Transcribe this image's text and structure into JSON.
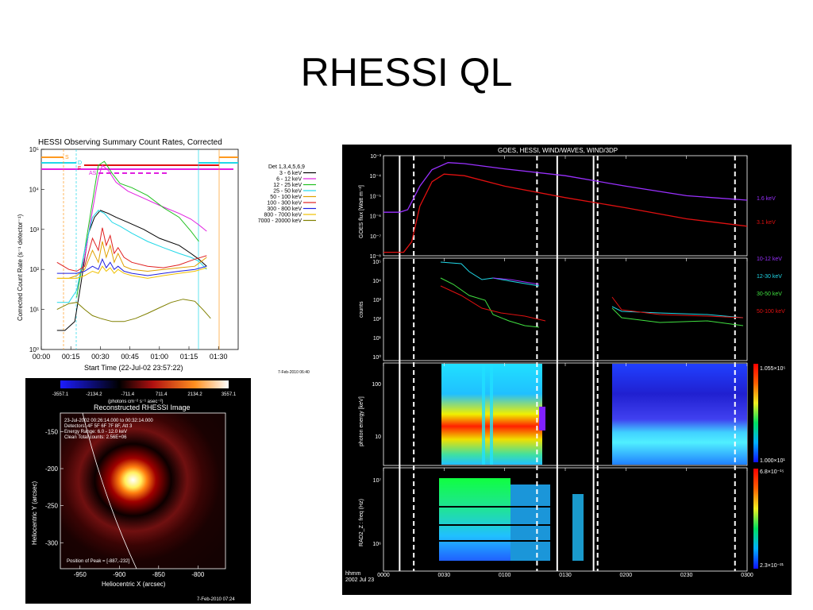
{
  "slide": {
    "title": "RHESSI QL"
  },
  "chart_data": [
    {
      "type": "line",
      "title": "HESSI Observing Summary Count Rates, Corrected",
      "xlabel": "Start Time (22-Jul-02 23:57:22)",
      "ylabel": "Corrected Count Rate (s⁻¹ detector⁻¹)",
      "y_scale": "log",
      "ylim": [
        1,
        100000
      ],
      "xlim_minutes": [
        0,
        100
      ],
      "x_ticks": [
        "00:00",
        "00:15",
        "00:30",
        "00:45",
        "01:00",
        "01:15",
        "01:30"
      ],
      "y_ticks": [
        "10⁰",
        "10¹",
        "10²",
        "10³",
        "10⁴",
        "10⁵"
      ],
      "legend_header": "Det 1,3,4,5,6,9",
      "legend_position": "right",
      "footer": "7-Feb-2010 06:40",
      "flag_labels": [
        "S",
        "D",
        "F",
        "AS"
      ],
      "series": [
        {
          "name": "3 - 6 keV",
          "color": "#000000",
          "x": [
            8,
            12,
            17,
            20,
            24,
            27,
            30,
            34,
            38,
            44,
            52,
            60,
            70,
            76,
            80,
            84
          ],
          "values": [
            3,
            3,
            5,
            40,
            800,
            2000,
            3000,
            2500,
            2000,
            1500,
            1000,
            600,
            400,
            250,
            180,
            120
          ]
        },
        {
          "name": "6 - 12 keV",
          "color": "#e020e0",
          "x": [
            18,
            22,
            26,
            29,
            31,
            34,
            38,
            44,
            52,
            60,
            70,
            76,
            80,
            84
          ],
          "values": [
            30,
            200,
            3000,
            20000,
            40000,
            30000,
            15000,
            9000,
            6000,
            4000,
            2500,
            1800,
            1300,
            900
          ]
        },
        {
          "name": "12 - 25 keV",
          "color": "#20c020",
          "x": [
            18,
            22,
            26,
            29,
            32,
            36,
            40,
            46,
            54,
            62,
            70,
            76,
            80
          ],
          "values": [
            20,
            300,
            5000,
            40000,
            50000,
            25000,
            14000,
            11000,
            7000,
            3500,
            2000,
            900,
            500
          ]
        },
        {
          "name": "25 - 50 keV",
          "color": "#20d8e8",
          "x": [
            8,
            14,
            18,
            22,
            26,
            29,
            32,
            36,
            40,
            46,
            54,
            62,
            70,
            76,
            80,
            84
          ],
          "values": [
            15,
            15,
            30,
            300,
            2000,
            3000,
            2500,
            1500,
            1200,
            800,
            500,
            350,
            250,
            200,
            160,
            100
          ]
        },
        {
          "name": "50 - 100 keV",
          "color": "#e0a000",
          "x": [
            8,
            14,
            18,
            22,
            26,
            29,
            31,
            33,
            35,
            37,
            39,
            42,
            46,
            54,
            62,
            70,
            78,
            84
          ],
          "values": [
            60,
            60,
            70,
            100,
            300,
            150,
            500,
            200,
            400,
            150,
            250,
            120,
            100,
            90,
            100,
            110,
            120,
            200
          ]
        },
        {
          "name": "100 - 300 keV",
          "color": "#e02020",
          "x": [
            8,
            14,
            18,
            22,
            26,
            29,
            31,
            33,
            35,
            37,
            39,
            42,
            46,
            54,
            62,
            70,
            78,
            84
          ],
          "values": [
            150,
            100,
            90,
            120,
            600,
            300,
            1100,
            400,
            700,
            250,
            350,
            200,
            150,
            120,
            110,
            130,
            180,
            220
          ]
        },
        {
          "name": "300 - 800 keV",
          "color": "#2020e0",
          "x": [
            8,
            14,
            18,
            22,
            26,
            29,
            31,
            33,
            35,
            37,
            39,
            42,
            46,
            54,
            62,
            70,
            78,
            84
          ],
          "values": [
            80,
            80,
            80,
            90,
            120,
            100,
            180,
            110,
            150,
            100,
            120,
            90,
            80,
            70,
            80,
            90,
            100,
            120
          ]
        },
        {
          "name": "800 - 7000 keV",
          "color": "#f0c000",
          "x": [
            8,
            14,
            18,
            22,
            26,
            29,
            31,
            33,
            35,
            37,
            39,
            42,
            46,
            54,
            62,
            70,
            78,
            84
          ],
          "values": [
            60,
            60,
            60,
            70,
            90,
            80,
            120,
            90,
            110,
            80,
            100,
            80,
            70,
            60,
            70,
            80,
            90,
            110
          ]
        },
        {
          "name": "7000 - 20000 keV",
          "color": "#808000",
          "x": [
            8,
            14,
            18,
            22,
            26,
            30,
            36,
            42,
            48,
            54,
            60,
            66,
            72,
            78,
            82,
            86
          ],
          "values": [
            10,
            14,
            15,
            10,
            7,
            6,
            5,
            5,
            6,
            8,
            11,
            15,
            18,
            16,
            10,
            6
          ]
        }
      ]
    },
    {
      "type": "heatmap",
      "title": "Reconstructed RHESSI Image",
      "colorbar_ticks": [
        "-3557.1",
        "-2134.2",
        "-711.4",
        "711.4",
        "2134.2",
        "3557.1"
      ],
      "colorbar_units": "(photons cm⁻² s⁻¹ asec⁻²)",
      "info_lines": [
        "23-Jul-2002 00:26:14.000 to 00:32:14.000",
        "Detectors: 4F 5F 6F 7F 8F, Att 3",
        "Energy Range: 6.0 - 12.0 keV",
        "Clean    Total counts: 2.56E+06"
      ],
      "peak_label": "Position of Peak = [-887,-232]",
      "xlabel": "Heliocentric X (arcsec)",
      "ylabel": "Heliocentric Y (arcsec)",
      "x_ticks": [
        "-950",
        "-900",
        "-850",
        "-800"
      ],
      "y_ticks": [
        "-150",
        "-200",
        "-250",
        "-300"
      ],
      "peak": [
        -887,
        -232
      ],
      "footer": "7-Feb-2010 07:24"
    },
    {
      "type": "line",
      "title": "GOES, HESSI, WIND/WAVES, WIND/3DP",
      "x_ticks": [
        "0000",
        "0030",
        "0100",
        "0130",
        "0200",
        "0230",
        "0300"
      ],
      "x_caption": [
        "hhmm",
        "2002 Jul 23"
      ],
      "panels": [
        {
          "ylabel": "GOES flux [Watt m⁻²]",
          "y_scale": "log",
          "y_ticks": [
            "10⁻³",
            "10⁻⁴",
            "10⁻⁵",
            "10⁻⁶",
            "10⁻⁷",
            "10⁻⁸"
          ],
          "series": [
            {
              "name": "1.6 keV",
              "color": "#9a30ff",
              "x": [
                0,
                8,
                12,
                18,
                24,
                32,
                40,
                60,
                90,
                120,
                150,
                180
              ],
              "values": [
                1.5e-06,
                1.5e-06,
                2e-06,
                3e-05,
                0.0002,
                0.00045,
                0.0004,
                0.00022,
                0.0001,
                3e-05,
                1e-05,
                6e-06
              ]
            },
            {
              "name": "3.1 keV",
              "color": "#e01010",
              "x": [
                0,
                10,
                14,
                18,
                24,
                30,
                40,
                60,
                90,
                120,
                150,
                180
              ],
              "values": [
                1.5e-08,
                1.5e-08,
                5e-08,
                3e-06,
                5e-05,
                0.00012,
                0.0001,
                3e-05,
                8e-06,
                2.5e-06,
                7e-07,
                3e-07
              ]
            }
          ]
        },
        {
          "ylabel": "counts",
          "y_scale": "log",
          "y_ticks": [
            "10⁵",
            "10⁴",
            "10³",
            "10²",
            "10¹",
            "10⁰"
          ],
          "series": [
            {
              "name": "10-12 keV",
              "color": "#9a30ff"
            },
            {
              "name": "12-30 keV",
              "color": "#20d8e8"
            },
            {
              "name": "30-50 keV",
              "color": "#40e040"
            },
            {
              "name": "50-100 keV",
              "color": "#e01010"
            }
          ]
        },
        {
          "ylabel": "photon energy [keV]",
          "y_ticks": [
            "100",
            "10"
          ],
          "colorbar_max": "1.055×10⁵",
          "colorbar_min": "1.000×10¹"
        },
        {
          "ylabel": "RAD2_Z : freq (Hz)",
          "y_ticks": [
            "10⁷",
            "10⁶"
          ],
          "colorbar_max": "6.8×10⁻¹⁵",
          "colorbar_min": "2.3×10⁻²¹"
        }
      ]
    }
  ]
}
